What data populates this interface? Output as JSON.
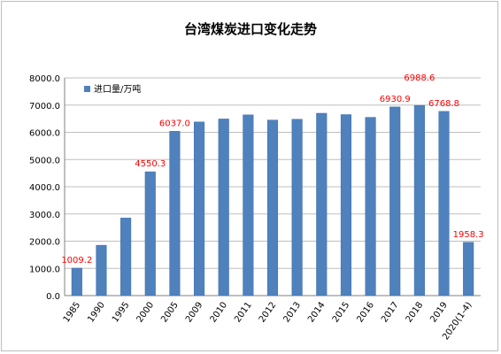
{
  "chart_data": {
    "type": "bar",
    "title": "台湾煤炭进口变化走势",
    "xlabel": "",
    "ylabel": "",
    "ylim": [
      0,
      8000
    ],
    "y_ticks": [
      "0.0",
      "1000.0",
      "2000.0",
      "3000.0",
      "4000.0",
      "5000.0",
      "6000.0",
      "7000.0",
      "8000.0"
    ],
    "grid": true,
    "legend_position": "top-left",
    "categories": [
      "1985",
      "1990",
      "1995",
      "2000",
      "2005",
      "2009",
      "2010",
      "2011",
      "2012",
      "2013",
      "2014",
      "2015",
      "2016",
      "2017",
      "2018",
      "2019",
      "2020(1-4)"
    ],
    "series": [
      {
        "name": "进口量/万吨",
        "values": [
          1009.2,
          1850,
          2850,
          4550.3,
          6037.0,
          6380,
          6490,
          6640,
          6450,
          6480,
          6700,
          6650,
          6550,
          6930.9,
          6988.6,
          6768.8,
          1958.3
        ]
      }
    ],
    "data_labels": [
      {
        "index": 0,
        "text": "1009.2"
      },
      {
        "index": 3,
        "text": "4550.3"
      },
      {
        "index": 4,
        "text": "6037.0"
      },
      {
        "index": 13,
        "text": "6930.9"
      },
      {
        "index": 14,
        "text": "6988.6"
      },
      {
        "index": 15,
        "text": "6768.8"
      },
      {
        "index": 16,
        "text": "1958.3"
      }
    ]
  },
  "colors": {
    "bar": "#4f81bd",
    "bar_edge": "#3d6ea8",
    "grid": "#bfbfbf",
    "axis": "#808080",
    "data_label": "#ff0000",
    "frame": "#bdbdbd"
  }
}
